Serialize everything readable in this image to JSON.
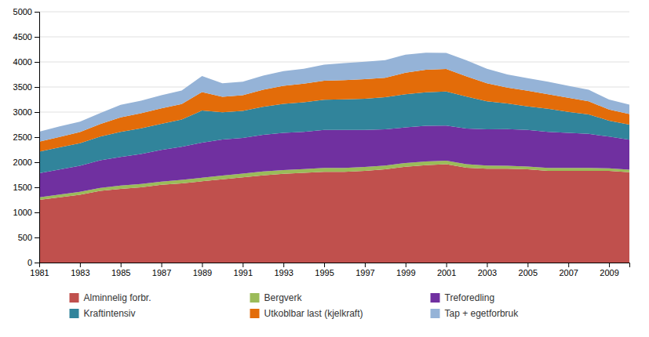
{
  "chart_data": {
    "type": "area",
    "stacked": true,
    "x": [
      1981,
      1982,
      1983,
      1984,
      1985,
      1986,
      1987,
      1988,
      1989,
      1990,
      1991,
      1992,
      1993,
      1994,
      1995,
      1996,
      1997,
      1998,
      1999,
      2000,
      2001,
      2002,
      2003,
      2004,
      2005,
      2006,
      2007,
      2008,
      2009,
      2010
    ],
    "series": [
      {
        "name": "Alminnelig forbr.",
        "color": "#C0504D",
        "values": [
          1250,
          1300,
          1350,
          1430,
          1470,
          1500,
          1550,
          1580,
          1620,
          1660,
          1700,
          1740,
          1770,
          1790,
          1810,
          1810,
          1830,
          1860,
          1910,
          1940,
          1960,
          1890,
          1870,
          1870,
          1860,
          1830,
          1830,
          1830,
          1830,
          1800
        ]
      },
      {
        "name": "Bergverk",
        "color": "#9BBB59",
        "values": [
          50,
          55,
          60,
          60,
          65,
          65,
          65,
          70,
          70,
          75,
          75,
          75,
          75,
          75,
          75,
          75,
          75,
          75,
          75,
          75,
          70,
          70,
          65,
          60,
          55,
          55,
          55,
          55,
          50,
          50
        ]
      },
      {
        "name": "Treforedling",
        "color": "#7030A0",
        "values": [
          480,
          500,
          520,
          550,
          570,
          600,
          630,
          660,
          700,
          720,
          710,
          730,
          740,
          740,
          760,
          760,
          740,
          720,
          710,
          710,
          700,
          710,
          720,
          730,
          730,
          720,
          700,
          680,
          630,
          600
        ]
      },
      {
        "name": "Kraftintensiv",
        "color": "#31849B",
        "values": [
          430,
          440,
          450,
          470,
          500,
          510,
          520,
          540,
          640,
          540,
          540,
          560,
          580,
          590,
          600,
          610,
          620,
          640,
          660,
          670,
          680,
          640,
          560,
          510,
          470,
          460,
          420,
          390,
          320,
          300
        ]
      },
      {
        "name": "Utkoblbar last (kjelkraft)",
        "color": "#E36C09",
        "values": [
          200,
          210,
          220,
          250,
          290,
          300,
          310,
          310,
          370,
          310,
          310,
          340,
          360,
          370,
          380,
          380,
          390,
          390,
          430,
          450,
          450,
          400,
          360,
          320,
          310,
          290,
          280,
          260,
          220,
          210
        ]
      },
      {
        "name": "Tap + egetforbruk",
        "color": "#95B3D7",
        "values": [
          200,
          210,
          210,
          220,
          250,
          250,
          260,
          270,
          320,
          270,
          270,
          280,
          290,
          300,
          320,
          340,
          350,
          350,
          360,
          340,
          320,
          320,
          290,
          260,
          250,
          250,
          240,
          230,
          200,
          190
        ]
      }
    ],
    "xlim": [
      1981,
      2010
    ],
    "xticks": [
      1981,
      1983,
      1985,
      1987,
      1989,
      1991,
      1993,
      1995,
      1997,
      1999,
      2001,
      2003,
      2005,
      2007,
      2009
    ],
    "ylim": [
      0,
      5000
    ],
    "yticks": [
      0,
      500,
      1000,
      1500,
      2000,
      2500,
      3000,
      3500,
      4000,
      4500,
      5000
    ],
    "grid": true,
    "legend": "bottom"
  }
}
